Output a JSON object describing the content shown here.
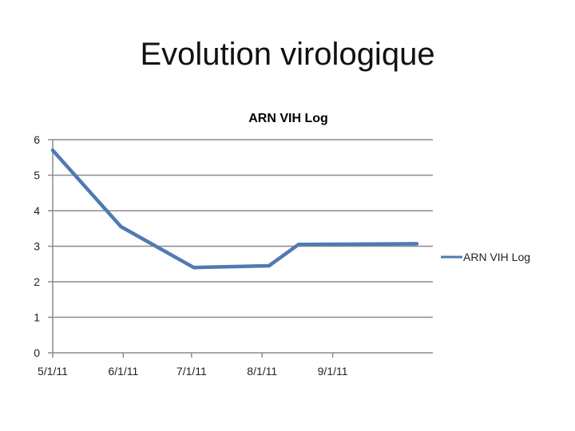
{
  "slide": {
    "title": "Evolution virologique"
  },
  "chart_data": {
    "type": "line",
    "title": "ARN VIH Log",
    "xlabel": "",
    "ylabel": "",
    "x": [
      "2011-05-01",
      "2011-05-31",
      "2011-07-02",
      "2011-08-04",
      "2011-08-17",
      "2011-10-08"
    ],
    "x_ticks": [
      "5/1/11",
      "6/1/11",
      "7/1/11",
      "8/1/11",
      "9/1/11"
    ],
    "x_tick_dates": [
      "2011-05-01",
      "2011-06-01",
      "2011-07-01",
      "2011-08-01",
      "2011-09-01"
    ],
    "xlim": [
      "2011-05-01",
      "2011-10-15"
    ],
    "ylim": [
      0,
      6
    ],
    "y_ticks": [
      0,
      1,
      2,
      3,
      4,
      5,
      6
    ],
    "grid": true,
    "legend": "right",
    "series": [
      {
        "name": "ARN VIH Log",
        "values": [
          5.7,
          3.55,
          2.4,
          2.45,
          3.05,
          3.07
        ],
        "color": "#4f7ab3"
      }
    ]
  }
}
